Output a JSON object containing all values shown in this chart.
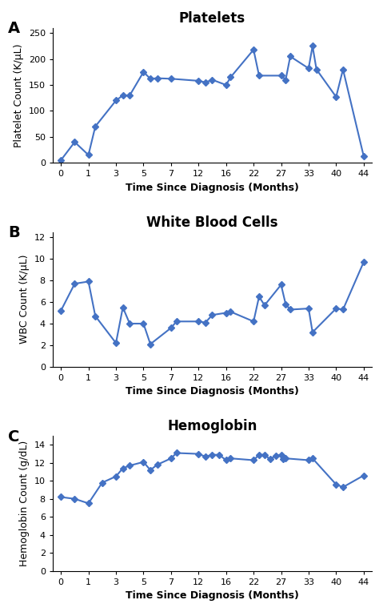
{
  "panel_A": {
    "title": "Platelets",
    "ylabel": "Platelet Count (K/μL)",
    "xlabel": "Time Since Diagnosis (Months)",
    "xtick_labels": [
      "0",
      "1",
      "3",
      "5",
      "7",
      "12",
      "16",
      "22",
      "27",
      "33",
      "40",
      "44"
    ],
    "xtick_values": [
      0,
      1,
      3,
      5,
      7,
      12,
      16,
      22,
      27,
      33,
      40,
      44
    ],
    "yticks": [
      0,
      50,
      100,
      150,
      200,
      250
    ],
    "ylim": [
      0,
      260
    ],
    "x": [
      0,
      0.5,
      1,
      1.5,
      3,
      3.5,
      4,
      5,
      5.5,
      6,
      7,
      12,
      13,
      14,
      16,
      17,
      22,
      23,
      27,
      28,
      29,
      33,
      34,
      35,
      40,
      41,
      44
    ],
    "y": [
      5,
      40,
      15,
      70,
      120,
      130,
      130,
      175,
      162,
      163,
      162,
      158,
      155,
      160,
      150,
      165,
      218,
      168,
      168,
      160,
      205,
      182,
      225,
      180,
      127,
      180,
      13
    ],
    "label": "A"
  },
  "panel_B": {
    "title": "White Blood Cells",
    "ylabel": "WBC Count (K/μL)",
    "xlabel": "Time Since Diagnosis (Months)",
    "xtick_labels": [
      "0",
      "1",
      "3",
      "5",
      "7",
      "12",
      "16",
      "22",
      "27",
      "33",
      "40",
      "44"
    ],
    "xtick_values": [
      0,
      1,
      3,
      5,
      7,
      12,
      16,
      22,
      27,
      33,
      40,
      44
    ],
    "yticks": [
      0,
      2,
      4,
      6,
      8,
      10,
      12
    ],
    "ylim": [
      0,
      12.5
    ],
    "x": [
      0,
      0.5,
      1,
      1.5,
      3,
      3.5,
      4,
      5,
      5.5,
      7,
      8,
      12,
      13,
      14,
      16,
      17,
      22,
      23,
      24,
      27,
      28,
      29,
      33,
      34,
      40,
      41,
      44
    ],
    "y": [
      5.2,
      7.7,
      7.9,
      4.7,
      2.2,
      5.5,
      4.0,
      4.0,
      2.1,
      3.6,
      4.2,
      4.2,
      4.1,
      4.8,
      5.0,
      5.1,
      4.2,
      6.5,
      5.7,
      7.6,
      5.8,
      5.3,
      5.4,
      3.2,
      5.4,
      5.3,
      9.7
    ],
    "label": "B"
  },
  "panel_C": {
    "title": "Hemoglobin",
    "ylabel": "Hemoglobin Count (g/dL)",
    "xlabel": "Time Since Diagnosis (Months)",
    "xtick_labels": [
      "0",
      "1",
      "3",
      "5",
      "7",
      "12",
      "16",
      "22",
      "27",
      "33",
      "40",
      "44"
    ],
    "xtick_values": [
      0,
      1,
      3,
      5,
      7,
      12,
      16,
      22,
      27,
      33,
      40,
      44
    ],
    "yticks": [
      0,
      2,
      4,
      6,
      8,
      10,
      12,
      14
    ],
    "ylim": [
      0,
      15
    ],
    "x": [
      0,
      0.5,
      1,
      2,
      3,
      3.5,
      4,
      5,
      5.5,
      6,
      7,
      8,
      12,
      13,
      14,
      15,
      16,
      17,
      22,
      23,
      24,
      25,
      26,
      27,
      27.5,
      28,
      33,
      34,
      40,
      41,
      44
    ],
    "y": [
      8.2,
      8.0,
      7.5,
      9.8,
      10.5,
      11.4,
      11.7,
      12.1,
      11.2,
      11.8,
      12.5,
      13.1,
      13.0,
      12.7,
      12.9,
      12.9,
      12.3,
      12.5,
      12.3,
      12.9,
      12.9,
      12.4,
      12.8,
      12.9,
      12.4,
      12.5,
      12.3,
      12.5,
      9.6,
      9.3,
      10.6
    ],
    "label": "C"
  },
  "line_color": "#4472C4",
  "marker": "D",
  "markersize": 4,
  "linewidth": 1.5,
  "label_fontsize": 14,
  "title_fontsize": 12,
  "axis_label_fontsize": 9,
  "tick_fontsize": 8
}
